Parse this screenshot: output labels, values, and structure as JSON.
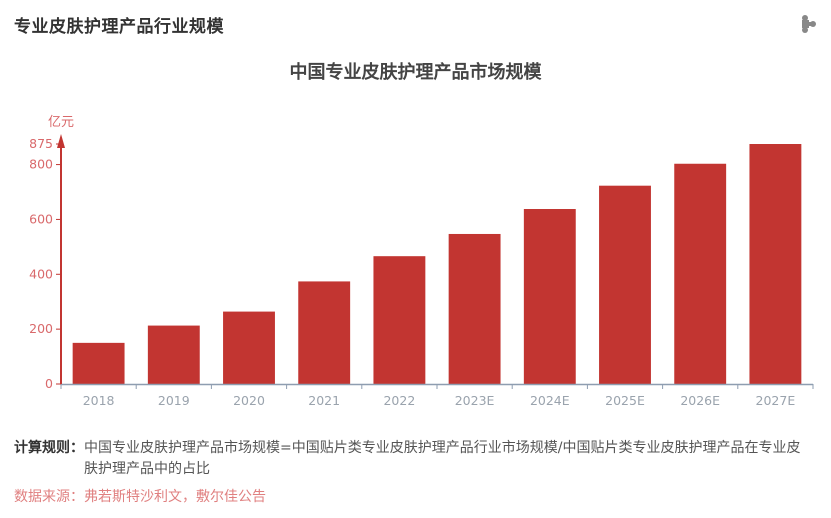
{
  "header": {
    "title": "专业皮肤护理产品行业规模",
    "share_icon": "share-icon"
  },
  "chart_data": {
    "type": "bar",
    "title": "中国专业皮肤护理产品市场规模",
    "ylabel": "亿元",
    "xlabel": "",
    "categories": [
      "2018",
      "2019",
      "2020",
      "2021",
      "2022",
      "2023E",
      "2024E",
      "2025E",
      "2026E",
      "2027E"
    ],
    "values": [
      150,
      213,
      264,
      374,
      466,
      547,
      638,
      723,
      803,
      875
    ],
    "yticks": [
      0,
      200,
      400,
      600,
      800,
      875
    ],
    "ylim": [
      0,
      875
    ],
    "bar_color": "#c23531",
    "axis_color": "#c23531",
    "xaxis_color": "#8e9db0",
    "grid": false,
    "legend": null
  },
  "footer": {
    "rule_label": "计算规则：",
    "rule_text": "中国专业皮肤护理产品市场规模=中国贴片类专业皮肤护理产品行业市场规模/中国贴片类专业皮肤护理产品在专业皮肤护理产品中的占比",
    "source": "数据来源：弗若斯特沙利文，敷尔佳公告"
  }
}
